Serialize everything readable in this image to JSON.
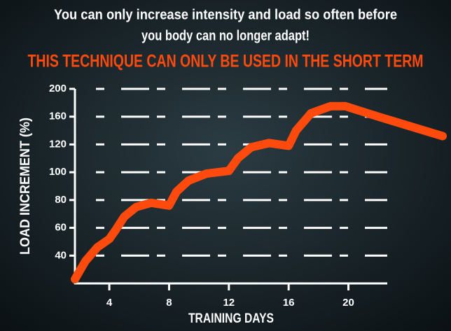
{
  "chart_data": {
    "type": "line",
    "title": [
      "You can only increase intensity and load so often before",
      "you body can no longer adapt!"
    ],
    "subtitle": "THIS TECHNIQUE CAN ONLY BE USED IN THE SHORT TERM",
    "x_label": "TRAINING DAYS",
    "y_label": "LOAD INCREMENT (%)",
    "x": [
      1.7,
      2.4,
      3.2,
      4,
      4.4,
      5,
      5.8,
      6.8,
      8,
      8.5,
      9.3,
      10.5,
      12,
      12.6,
      13.5,
      14.7,
      16,
      16.5,
      17.5,
      18.8,
      19.8,
      22,
      24,
      26.3
    ],
    "values": [
      23,
      36,
      46,
      52,
      58,
      68,
      75,
      78,
      76,
      86,
      94,
      99,
      101,
      110,
      118,
      122,
      119,
      140,
      165,
      175,
      175,
      160,
      147,
      132
    ],
    "color": "#ff4a0d",
    "xlim": [
      1.7,
      22.6
    ],
    "xticks": [
      4,
      8,
      12,
      16,
      20
    ],
    "ylim": [
      20,
      200
    ],
    "yticks": [
      40,
      60,
      80,
      100,
      120,
      160,
      200
    ],
    "grid": true
  }
}
